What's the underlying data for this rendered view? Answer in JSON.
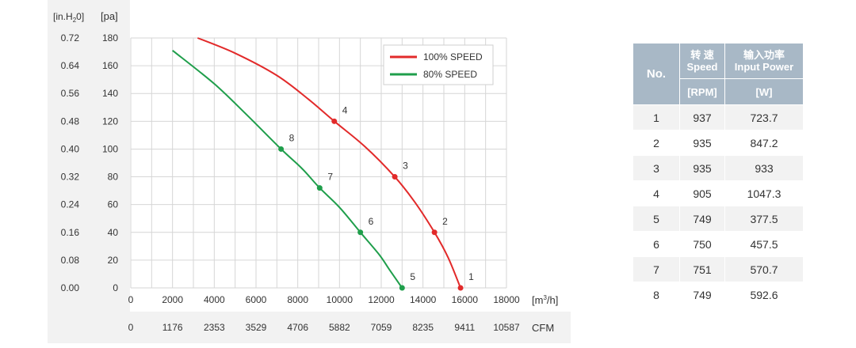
{
  "chart_data": {
    "type": "line",
    "left_axis_label": "[in.H",
    "left_axis_label_sub": "2",
    "left_axis_label_end": "0]",
    "right_axis_label": "[pa]",
    "x_unit_label": "[m",
    "x_unit_sup": "3",
    "x_unit_end": "/h]",
    "cfm_label": "CFM",
    "inh2o_ticks": [
      "0.72",
      "0.64",
      "0.56",
      "0.48",
      "0.40",
      "0.32",
      "0.24",
      "0.16",
      "0.08",
      "0.00"
    ],
    "pa_ticks": [
      "180",
      "160",
      "140",
      "120",
      "100",
      "80",
      "60",
      "40",
      "20",
      "0"
    ],
    "x_ticks": [
      "0",
      "2000",
      "4000",
      "6000",
      "8000",
      "10000",
      "12000",
      "14000",
      "16000",
      "18000"
    ],
    "cfm_ticks": [
      "0",
      "1176",
      "2353",
      "3529",
      "4706",
      "5882",
      "7059",
      "8235",
      "9411",
      "10587"
    ],
    "xlim": [
      0,
      18000
    ],
    "ylim": [
      0,
      180
    ],
    "grid": true,
    "legend_position": "top-right",
    "series": [
      {
        "name": "100% SPEED",
        "color": "#e22a2a",
        "curve": [
          [
            3200,
            180
          ],
          [
            5000,
            169
          ],
          [
            7000,
            153
          ],
          [
            8500,
            136
          ],
          [
            9750,
            120
          ],
          [
            11200,
            102
          ],
          [
            12650,
            80
          ],
          [
            13600,
            62
          ],
          [
            14550,
            40
          ],
          [
            15200,
            22
          ],
          [
            15800,
            0
          ]
        ],
        "points": [
          {
            "label": "1",
            "x": 15800,
            "y": 0
          },
          {
            "label": "2",
            "x": 14550,
            "y": 40
          },
          {
            "label": "3",
            "x": 12650,
            "y": 80
          },
          {
            "label": "4",
            "x": 9750,
            "y": 120
          }
        ]
      },
      {
        "name": "80% SPEED",
        "color": "#1f9e4b",
        "curve": [
          [
            2000,
            171
          ],
          [
            4000,
            147
          ],
          [
            5600,
            124
          ],
          [
            7200,
            100
          ],
          [
            8200,
            86
          ],
          [
            9050,
            72
          ],
          [
            10000,
            58
          ],
          [
            11000,
            40
          ],
          [
            11900,
            24
          ],
          [
            12400,
            13
          ],
          [
            13000,
            0
          ]
        ],
        "points": [
          {
            "label": "5",
            "x": 13000,
            "y": 0
          },
          {
            "label": "6",
            "x": 11000,
            "y": 40
          },
          {
            "label": "7",
            "x": 9050,
            "y": 72
          },
          {
            "label": "8",
            "x": 7200,
            "y": 100
          }
        ]
      }
    ]
  },
  "table": {
    "no_header": "No.",
    "speed_header_cn": "转 速",
    "speed_header_en": "Speed",
    "power_header_cn": "输入功率",
    "power_header_en": "Input Power",
    "speed_unit": "[RPM]",
    "power_unit": "[W]",
    "rows": [
      {
        "no": "1",
        "rpm": "937",
        "w": "723.7"
      },
      {
        "no": "2",
        "rpm": "935",
        "w": "847.2"
      },
      {
        "no": "3",
        "rpm": "935",
        "w": "933"
      },
      {
        "no": "4",
        "rpm": "905",
        "w": "1047.3"
      },
      {
        "no": "5",
        "rpm": "749",
        "w": "377.5"
      },
      {
        "no": "6",
        "rpm": "750",
        "w": "457.5"
      },
      {
        "no": "7",
        "rpm": "751",
        "w": "570.7"
      },
      {
        "no": "8",
        "rpm": "749",
        "w": "592.6"
      }
    ]
  }
}
